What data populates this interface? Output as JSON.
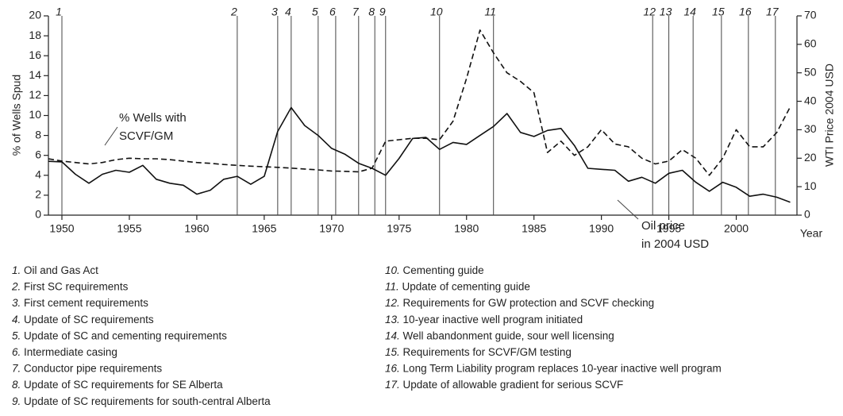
{
  "chart_data": {
    "type": "line",
    "y_label": "% of Wells Spud",
    "y2_label": "WTI Price 2004 USD",
    "x_label": "Year",
    "x": [
      1949,
      1950,
      1951,
      1952,
      1953,
      1954,
      1955,
      1956,
      1957,
      1958,
      1959,
      1960,
      1961,
      1962,
      1963,
      1964,
      1965,
      1966,
      1967,
      1968,
      1969,
      1970,
      1971,
      1972,
      1973,
      1974,
      1975,
      1976,
      1977,
      1978,
      1979,
      1980,
      1981,
      1982,
      1983,
      1984,
      1985,
      1986,
      1987,
      1988,
      1989,
      1990,
      1991,
      1992,
      1993,
      1994,
      1995,
      1996,
      1997,
      1998,
      1999,
      2000,
      2001,
      2002,
      2003,
      2004
    ],
    "series": [
      {
        "color": "#111111",
        "dashed": false,
        "values": [
          5.4,
          5.35,
          4.1,
          3.2,
          4.1,
          4.5,
          4.3,
          5.0,
          3.6,
          3.2,
          3.0,
          2.1,
          2.5,
          3.6,
          3.9,
          3.1,
          3.9,
          8.4,
          10.8,
          9.0,
          8.0,
          6.7,
          6.1,
          5.2,
          4.7,
          4.0,
          5.7,
          7.7,
          7.8,
          6.6,
          7.3,
          7.1,
          8.0,
          8.9,
          10.2,
          8.3,
          7.9,
          8.5,
          8.7,
          7.0,
          4.7,
          4.6,
          4.5,
          3.4,
          3.8,
          3.2,
          4.2,
          4.5,
          3.3,
          2.4,
          3.3,
          2.8,
          1.9,
          2.1,
          1.8,
          1.3
        ]
      },
      {
        "color": "#111111",
        "dashed": true,
        "axis": "y2",
        "values": [
          19.8,
          19,
          18.5,
          18,
          18.5,
          19.5,
          20,
          19.8,
          19.8,
          19.5,
          19,
          18.5,
          18.2,
          17.8,
          17.5,
          17.2,
          17,
          16.8,
          16.5,
          16.2,
          15.9,
          15.5,
          15.4,
          15.2,
          16.5,
          26,
          26.5,
          27,
          27,
          26.5,
          33,
          48,
          65,
          57,
          50,
          47,
          43,
          22,
          26,
          21,
          24,
          30,
          25,
          24,
          20,
          18,
          19,
          23,
          20,
          14,
          20,
          30,
          24,
          24,
          29,
          38
        ]
      }
    ],
    "xlim": [
      1949,
      2004.5
    ],
    "xticks": [
      1950,
      1955,
      1960,
      1965,
      1970,
      1975,
      1980,
      1985,
      1990,
      1995,
      2000
    ],
    "ylim": [
      0,
      20
    ],
    "yticks": [
      0,
      2,
      4,
      6,
      8,
      10,
      12,
      14,
      16,
      18,
      20
    ],
    "y2lim": [
      0,
      70
    ],
    "y2ticks": [
      0,
      10,
      20,
      30,
      40,
      50,
      60,
      70
    ],
    "events": [
      {
        "label": "1",
        "x": 1950
      },
      {
        "label": "2",
        "x": 1963
      },
      {
        "label": "3",
        "x": 1966
      },
      {
        "label": "4",
        "x": 1967
      },
      {
        "label": "5",
        "x": 1969
      },
      {
        "label": "6",
        "x": 1970.3
      },
      {
        "label": "7",
        "x": 1972
      },
      {
        "label": "8",
        "x": 1973.2
      },
      {
        "label": "9",
        "x": 1974
      },
      {
        "label": "10",
        "x": 1978
      },
      {
        "label": "11",
        "x": 1982
      },
      {
        "label": "12",
        "x": 1993.8
      },
      {
        "label": "13",
        "x": 1995
      },
      {
        "label": "14",
        "x": 1996.8
      },
      {
        "label": "15",
        "x": 1998.9
      },
      {
        "label": "16",
        "x": 2000.9
      },
      {
        "label": "17",
        "x": 2002.9
      }
    ],
    "annotations": [
      {
        "lines": [
          "% Wells with",
          "SCVF/GM"
        ]
      },
      {
        "lines": [
          "Oil price",
          "in 2004 USD"
        ]
      }
    ],
    "notes": [
      {
        "number": "1.",
        "text": "Oil and Gas Act"
      },
      {
        "number": "2.",
        "text": "First SC requirements"
      },
      {
        "number": "3.",
        "text": "First cement requirements"
      },
      {
        "number": "4.",
        "text": "Update of SC requirements"
      },
      {
        "number": "5.",
        "text": "Update of SC and cementing requirements"
      },
      {
        "number": "6.",
        "text": "Intermediate casing"
      },
      {
        "number": "7.",
        "text": "Conductor pipe requirements"
      },
      {
        "number": "8.",
        "text": "Update of SC requirements for SE Alberta"
      },
      {
        "number": "9.",
        "text": "Update of SC requirements for south-central Alberta"
      },
      {
        "number": "10.",
        "text": "Cementing guide"
      },
      {
        "number": "11.",
        "text": "Update of cementing guide"
      },
      {
        "number": "12.",
        "text": "Requirements for GW protection and SCVF checking"
      },
      {
        "number": "13.",
        "text": "10-year inactive well program initiated"
      },
      {
        "number": "14.",
        "text": "Well abandonment guide, sour well licensing"
      },
      {
        "number": "15.",
        "text": "Requirements for SCVF/GM testing"
      },
      {
        "number": "16.",
        "text": "Long Term Liability program replaces 10-year inactive well program"
      },
      {
        "number": "17.",
        "text": "Update of allowable gradient for serious SCVF"
      }
    ]
  }
}
